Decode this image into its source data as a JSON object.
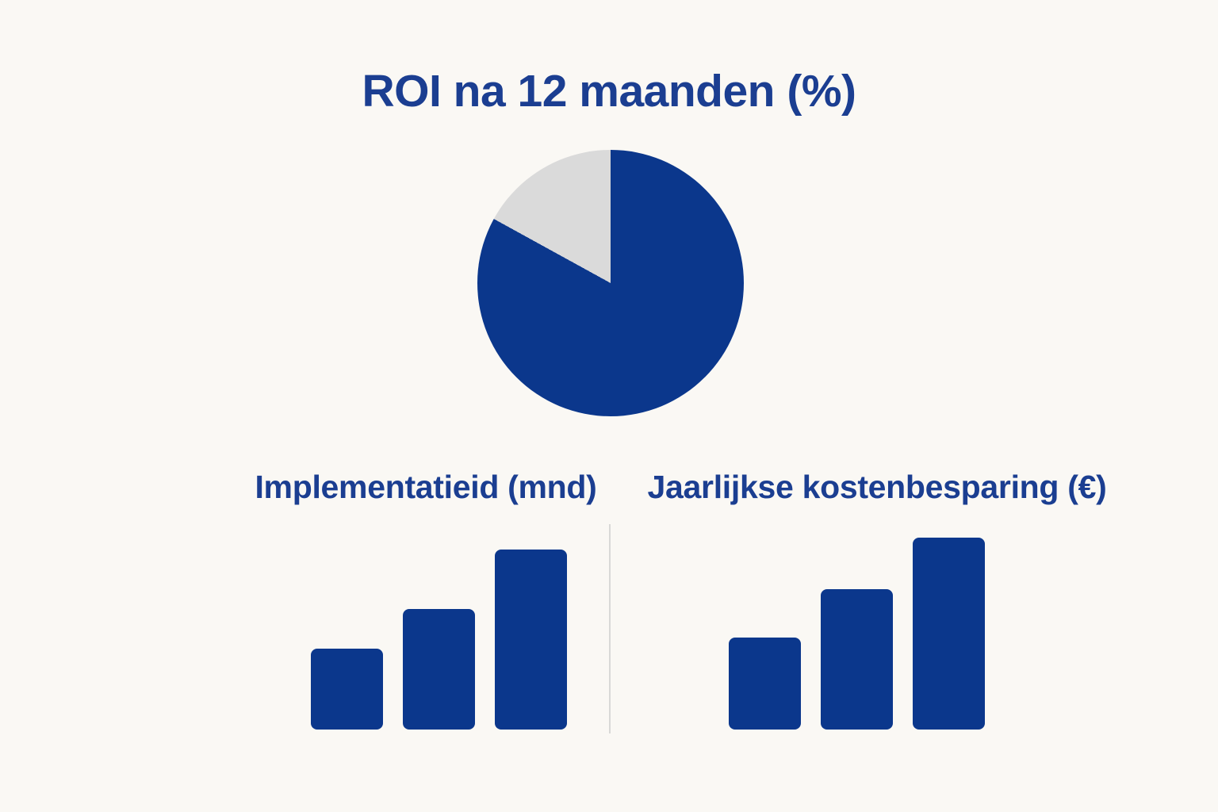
{
  "page": {
    "background_color": "#faf8f4",
    "title": "ROI na 12 maanden (%)",
    "title_color": "#1b3e91",
    "divider_color": "#d9d9d7"
  },
  "chart_data": [
    {
      "type": "pie",
      "title": "ROI na 12 maanden (%)",
      "values": [
        83,
        17
      ],
      "colors": [
        "#0b378c",
        "#dadada"
      ],
      "start_angle_deg": 0,
      "direction": "clockwise",
      "legend": "none",
      "data_labels_shown": false
    },
    {
      "type": "bar",
      "title": "Implementatieid (mnd)",
      "values_pct_of_max": [
        45,
        67,
        100
      ],
      "bar_color": "#0b378c",
      "axes_shown": false,
      "grid": false,
      "tick_labels_shown": false
    },
    {
      "type": "bar",
      "title": "Jaarlijkse kostenbesparing (€)",
      "values_pct_of_max": [
        48,
        73,
        100
      ],
      "bar_color": "#0b378c",
      "axes_shown": false,
      "grid": false,
      "tick_labels_shown": false
    }
  ]
}
